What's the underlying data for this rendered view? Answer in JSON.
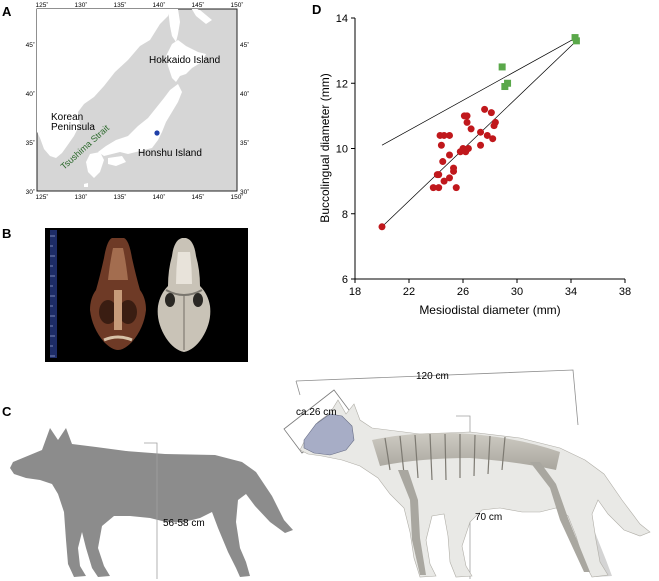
{
  "panels": {
    "a": {
      "letter": "A",
      "lon_ticks": [
        "125˚",
        "130˚",
        "135˚",
        "140˚",
        "145˚",
        "150˚"
      ],
      "lat_ticks": [
        "45˚",
        "40˚",
        "35˚",
        "30˚"
      ],
      "labels": {
        "hokkaido": "Hokkaido Island",
        "korean1": "Korean",
        "korean2": "Peninsula",
        "tsushima": "Tsushima Strait",
        "honshu": "Honshu Island"
      },
      "colors": {
        "sea": "#d6d6d6",
        "land": "#ffffff",
        "site": "#1f3fa8",
        "strait": "#2e6b2e"
      }
    },
    "b": {
      "letter": "B",
      "background": "#000000"
    },
    "c": {
      "letter": "C",
      "labels": {
        "length": "120 cm",
        "skull": "ca.26 cm",
        "height_left": "56-58 cm",
        "height_right": "70 cm"
      },
      "colors": {
        "silhouette": "#8c8c8c"
      }
    },
    "d": {
      "letter": "D"
    }
  },
  "chart_data": {
    "type": "scatter",
    "title": "",
    "xlabel": "Mesiodistal diameter (mm)",
    "ylabel": "Buccolingual diameter (mm)",
    "xlim": [
      18,
      38
    ],
    "ylim": [
      6,
      14
    ],
    "xticks": [
      18,
      22,
      26,
      30,
      34,
      38
    ],
    "yticks": [
      6,
      8,
      10,
      12,
      14
    ],
    "grid": false,
    "series": [
      {
        "color": "#c0181c",
        "marker": "circle",
        "points": [
          [
            20.0,
            7.6
          ],
          [
            23.8,
            8.8
          ],
          [
            24.2,
            8.8
          ],
          [
            24.2,
            9.2
          ],
          [
            24.1,
            9.2
          ],
          [
            24.6,
            9.0
          ],
          [
            25.0,
            9.1
          ],
          [
            25.3,
            9.3
          ],
          [
            25.5,
            8.8
          ],
          [
            25.3,
            9.4
          ],
          [
            24.5,
            9.6
          ],
          [
            25.0,
            9.8
          ],
          [
            24.4,
            10.1
          ],
          [
            24.6,
            10.4
          ],
          [
            24.3,
            10.4
          ],
          [
            25.0,
            10.4
          ],
          [
            25.8,
            9.9
          ],
          [
            26.0,
            10.0
          ],
          [
            26.2,
            9.9
          ],
          [
            26.4,
            10.0
          ],
          [
            26.3,
            10.8
          ],
          [
            26.1,
            11.0
          ],
          [
            26.3,
            11.0
          ],
          [
            26.6,
            10.6
          ],
          [
            27.3,
            10.5
          ],
          [
            27.3,
            10.1
          ],
          [
            27.6,
            11.2
          ],
          [
            28.1,
            11.1
          ],
          [
            28.2,
            10.3
          ],
          [
            28.4,
            10.8
          ],
          [
            27.8,
            10.4
          ],
          [
            28.3,
            10.7
          ]
        ]
      },
      {
        "color": "#5aa84a",
        "marker": "square",
        "points": [
          [
            28.9,
            12.5
          ],
          [
            29.1,
            11.9
          ],
          [
            29.3,
            12.0
          ],
          [
            34.3,
            13.4
          ],
          [
            34.4,
            13.3
          ]
        ]
      }
    ],
    "regression_lines": [
      {
        "from": [
          20.0,
          7.6
        ],
        "to": [
          34.4,
          13.3
        ]
      },
      {
        "from": [
          20.0,
          10.1
        ],
        "to": [
          34.4,
          13.4
        ]
      }
    ]
  }
}
